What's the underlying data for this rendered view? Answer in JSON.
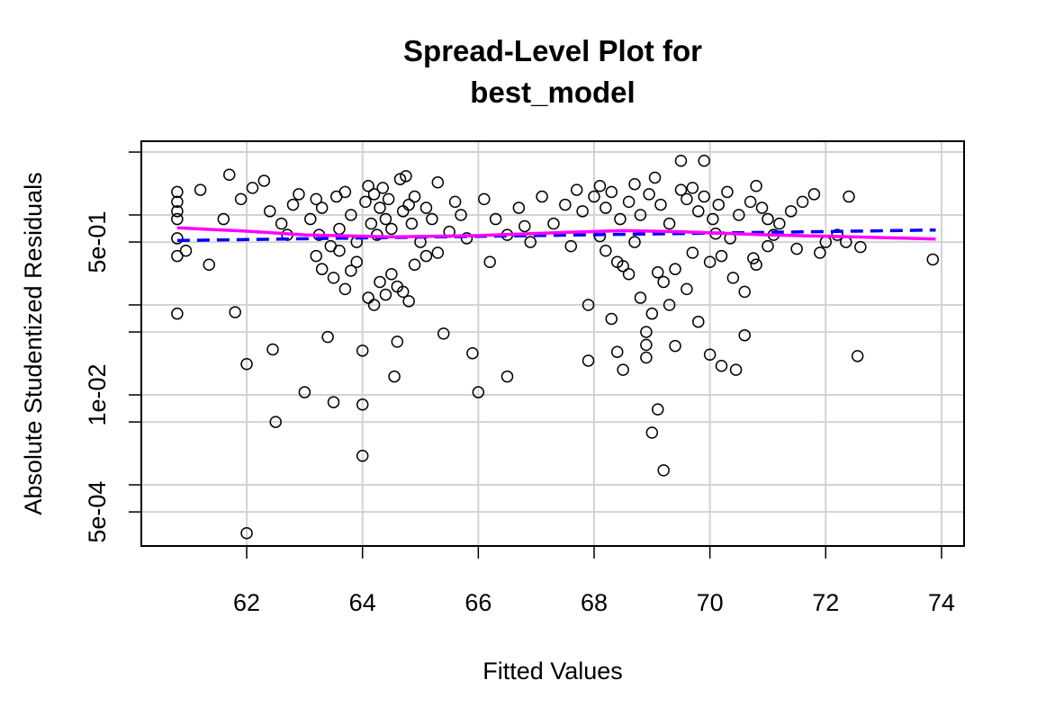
{
  "chart_data": {
    "type": "scatter",
    "title": [
      "Spread-Level Plot for",
      "best_model"
    ],
    "x_label": "Fitted Values",
    "y_label": "Absolute Studentized Residuals",
    "log_y": true,
    "grid": true,
    "xlim": [
      60.18,
      74.39
    ],
    "ylim": [
      0.000209,
      6.6
    ],
    "xticks": [
      62,
      64,
      66,
      68,
      70,
      72,
      74
    ],
    "yticks": [
      {
        "value": 0.5,
        "label": "5e-01"
      },
      {
        "value": 0.01,
        "label": "1e-02"
      },
      {
        "value": 0.0005,
        "label": "5e-04"
      }
    ],
    "yticks_minor": [
      5,
      1,
      0.1,
      0.05,
      0.005,
      0.001
    ],
    "point_color": "#000000",
    "x": [
      60.8,
      60.8,
      60.8,
      60.8,
      60.8,
      60.8,
      60.8,
      60.95,
      62.0,
      64.0,
      62.5,
      63.0,
      63.5,
      64.0,
      64.0,
      62.0,
      62.45,
      63.4,
      64.55,
      64.6,
      65.4,
      65.9,
      66.0,
      66.5,
      69.2,
      69.0,
      69.1,
      68.5,
      68.4,
      67.9,
      68.9,
      68.9,
      69.4,
      70.0,
      70.2,
      70.45,
      70.6,
      72.55,
      73.85,
      61.35,
      61.8,
      61.2,
      61.6,
      61.7,
      61.9,
      62.1,
      62.3,
      62.4,
      62.6,
      62.7,
      62.8,
      62.9,
      63.1,
      63.2,
      63.25,
      63.3,
      63.45,
      63.55,
      63.6,
      63.7,
      63.8,
      63.9,
      64.05,
      64.1,
      64.15,
      64.2,
      64.25,
      64.3,
      64.35,
      64.4,
      64.45,
      64.5,
      64.65,
      64.7,
      64.75,
      64.8,
      64.85,
      64.9,
      65.0,
      65.1,
      65.2,
      65.3,
      65.5,
      65.6,
      65.7,
      65.8,
      63.2,
      63.3,
      63.5,
      63.7,
      63.9,
      64.1,
      64.3,
      64.5,
      64.7,
      64.9,
      65.1,
      65.3,
      64.2,
      64.4,
      64.6,
      64.8,
      63.6,
      63.8,
      66.1,
      66.3,
      66.5,
      66.7,
      66.9,
      67.1,
      67.3,
      67.5,
      67.7,
      67.6,
      67.8,
      66.2,
      66.8,
      68.0,
      68.1,
      68.2,
      68.3,
      68.45,
      68.6,
      68.7,
      68.8,
      68.95,
      69.05,
      69.15,
      69.3,
      69.5,
      69.6,
      69.7,
      69.8,
      69.9,
      70.05,
      70.15,
      70.3,
      70.5,
      70.7,
      70.8,
      70.9,
      71.0,
      71.2,
      71.4,
      71.6,
      71.8,
      72.0,
      72.2,
      72.4,
      68.2,
      68.4,
      68.6,
      68.8,
      69.0,
      69.2,
      69.4,
      69.6,
      69.8,
      70.0,
      70.2,
      70.4,
      70.6,
      70.8,
      71.0,
      69.3,
      69.7,
      68.7,
      67.9,
      68.3,
      68.9,
      69.5,
      69.9,
      70.1,
      70.35,
      70.75,
      71.1,
      71.5,
      71.9,
      72.35,
      72.6,
      68.1,
      68.5,
      69.1
    ],
    "values": [
      1.8,
      1.4,
      1.1,
      0.9,
      0.55,
      0.35,
      0.08,
      0.4,
      0.00029,
      0.0021,
      0.005,
      0.0107,
      0.0083,
      0.0078,
      0.031,
      0.022,
      0.032,
      0.044,
      0.016,
      0.039,
      0.048,
      0.029,
      0.0107,
      0.016,
      0.00145,
      0.0038,
      0.0069,
      0.019,
      0.03,
      0.024,
      0.036,
      0.026,
      0.035,
      0.028,
      0.021,
      0.019,
      0.046,
      0.027,
      0.32,
      0.28,
      0.083,
      1.9,
      0.9,
      2.8,
      1.5,
      2.0,
      2.4,
      1.1,
      0.8,
      0.6,
      1.3,
      1.7,
      0.9,
      1.5,
      0.6,
      1.2,
      0.45,
      1.6,
      0.7,
      1.8,
      1.0,
      0.5,
      1.4,
      2.1,
      0.8,
      1.7,
      0.6,
      1.2,
      2.0,
      0.9,
      1.5,
      0.7,
      2.5,
      1.1,
      2.7,
      1.3,
      0.8,
      1.6,
      0.5,
      1.2,
      0.9,
      2.3,
      0.65,
      1.4,
      1.0,
      0.55,
      0.35,
      0.25,
      0.2,
      0.15,
      0.3,
      0.12,
      0.18,
      0.22,
      0.14,
      0.28,
      0.35,
      0.38,
      0.1,
      0.13,
      0.16,
      0.11,
      0.4,
      0.24,
      1.5,
      0.9,
      0.6,
      1.2,
      0.5,
      1.6,
      0.8,
      1.3,
      1.9,
      0.45,
      1.1,
      0.3,
      0.75,
      1.6,
      2.1,
      1.2,
      1.8,
      0.9,
      1.4,
      2.2,
      1.0,
      1.7,
      2.6,
      1.3,
      0.8,
      1.9,
      1.5,
      2.0,
      1.1,
      1.6,
      0.9,
      1.3,
      1.8,
      1.0,
      1.4,
      2.1,
      1.2,
      0.9,
      0.8,
      1.1,
      1.4,
      1.7,
      0.5,
      0.6,
      1.6,
      0.4,
      0.3,
      0.22,
      0.12,
      0.08,
      0.18,
      0.25,
      0.15,
      0.065,
      0.3,
      0.35,
      0.2,
      0.14,
      0.28,
      0.45,
      0.1,
      0.38,
      0.5,
      0.1,
      0.07,
      0.05,
      4.0,
      4.0,
      0.62,
      0.55,
      0.33,
      0.6,
      0.42,
      0.38,
      0.5,
      0.44,
      0.58,
      0.27,
      0.23
    ],
    "fit_line": {
      "color": "#0000ff",
      "x": [
        60.8,
        73.9
      ],
      "values": [
        0.52,
        0.68
      ]
    },
    "smooth_line": {
      "color": "#ff00ff",
      "x": [
        60.8,
        62,
        63,
        64.5,
        66,
        67.5,
        68.5,
        69.5,
        71,
        72.5,
        73.9
      ],
      "values": [
        0.72,
        0.66,
        0.6,
        0.57,
        0.59,
        0.64,
        0.67,
        0.65,
        0.6,
        0.57,
        0.54
      ]
    }
  }
}
